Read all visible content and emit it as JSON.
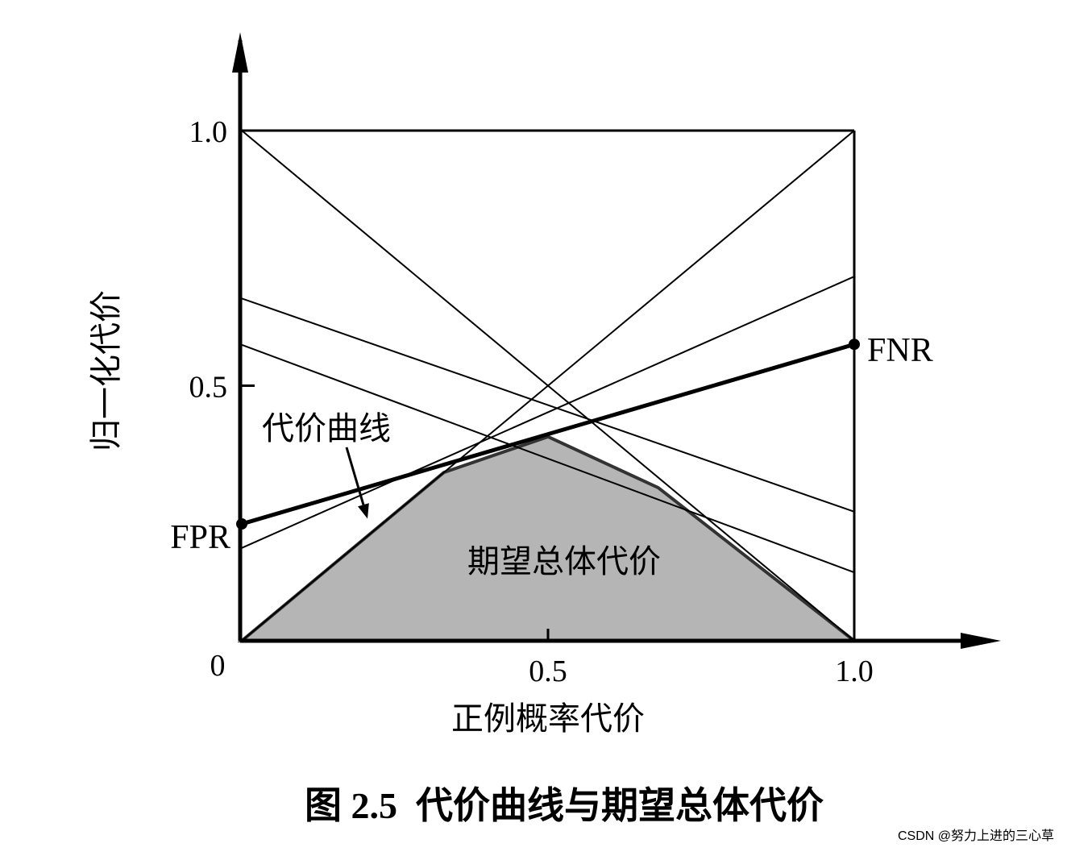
{
  "chart_data": {
    "type": "line",
    "title": "图 2.5  代价曲线与期望总体代价",
    "xlabel": "正例概率代价",
    "ylabel": "归一化代价",
    "xlim": [
      0,
      1
    ],
    "ylim": [
      0,
      1
    ],
    "xticks": [
      0.5,
      {
        "value": 1,
        "label": "1.0"
      }
    ],
    "yticks": [
      0,
      0.5,
      {
        "value": 1,
        "label": "1.0"
      }
    ],
    "x": [
      0,
      1
    ],
    "series": [
      {
        "color": "#000000",
        "line_width": 2,
        "values": [
          1,
          0
        ]
      },
      {
        "color": "#000000",
        "line_width": 2,
        "values": [
          0,
          1
        ]
      },
      {
        "color": "#000000",
        "line_width": 2,
        "values": [
          0.671,
          0.253
        ]
      },
      {
        "color": "#000000",
        "line_width": 2,
        "values": [
          0.58,
          0.134
        ]
      },
      {
        "color": "#000000",
        "line_width": 2,
        "values": [
          0.182,
          0.714
        ]
      },
      {
        "color": "#000000",
        "line_width": 5,
        "values": [
          0.229,
          0.581
        ]
      }
    ],
    "area": {
      "color": "#b5b5b5",
      "x": [
        0,
        0.33,
        0.5,
        0.68,
        1
      ],
      "values": [
        0,
        0.33,
        0.4,
        0.3,
        0
      ]
    },
    "annotations": [
      "FPR",
      "FNR",
      "代价曲线",
      "期望总体代价"
    ],
    "watermark": "CSDN @努力上进的三心草"
  }
}
